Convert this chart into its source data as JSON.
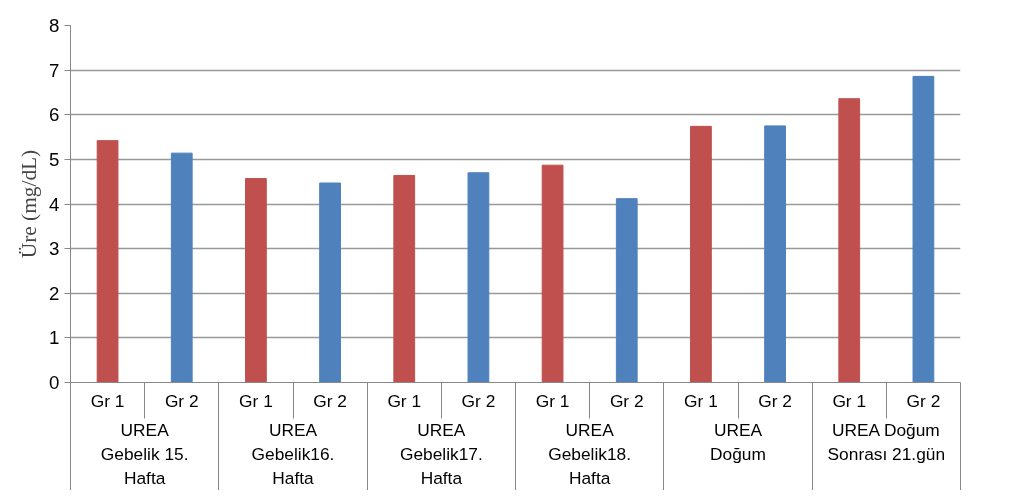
{
  "chart_data": {
    "type": "bar",
    "ylabel": "Üre (mg/dL)",
    "categories": [
      "UREA\nGebelik 15.\nHafta",
      "UREA\nGebelik16.\nHafta",
      "UREA\nGebelik17.\nHafta",
      "UREA\nGebelik18.\nHafta",
      "UREA\nDoğum",
      "UREA Doğum\nSonrası 21.gün"
    ],
    "series": [
      {
        "name": "Gr 1",
        "color": "#c0504d",
        "values": [
          5.42,
          4.57,
          4.64,
          4.87,
          5.74,
          6.36
        ]
      },
      {
        "name": "Gr 2",
        "color": "#4f81bd",
        "values": [
          5.14,
          4.47,
          4.7,
          4.12,
          5.75,
          6.86
        ]
      }
    ],
    "ylim": [
      0,
      8
    ],
    "yticks": [
      0,
      1,
      2,
      3,
      4,
      5,
      6,
      7,
      8
    ],
    "grid": "y",
    "legend": false
  }
}
